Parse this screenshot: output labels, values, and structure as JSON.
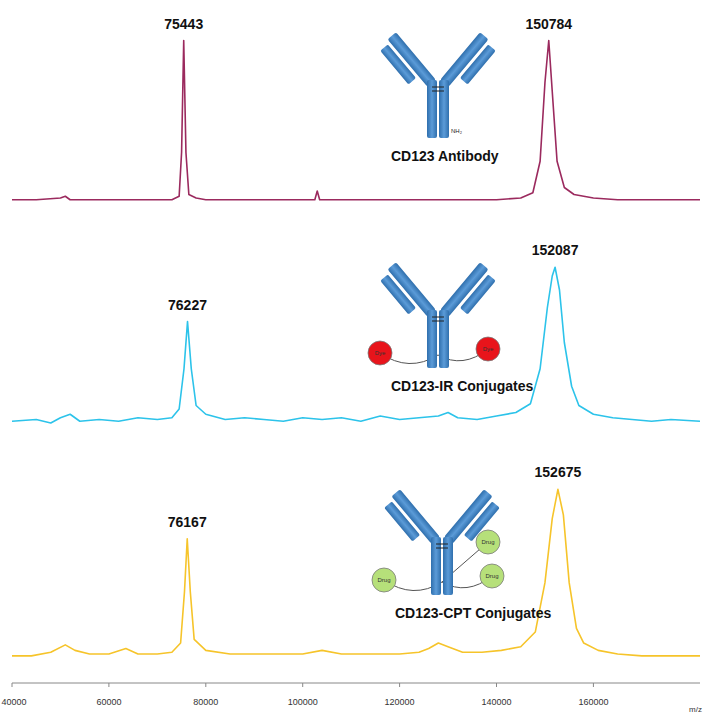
{
  "chart_data": [
    {
      "type": "line",
      "tick_labels": false,
      "xlim": [
        40000,
        182000
      ],
      "ylim": [
        0,
        100
      ],
      "series": [
        {
          "name": "CD123 Antibody",
          "color": "#9b2a5e",
          "x": [
            40000,
            45000,
            50000,
            51000,
            52000,
            56000,
            60000,
            65000,
            70000,
            73000,
            74500,
            75000,
            75443,
            75900,
            76500,
            78000,
            80000,
            85000,
            90000,
            95000,
            100000,
            102500,
            103000,
            103500,
            110000,
            120000,
            130000,
            140000,
            145000,
            147500,
            149000,
            150000,
            150784,
            151500,
            152500,
            154000,
            156000,
            160000,
            165000,
            170000,
            175000,
            182000
          ],
          "values": [
            3,
            3,
            4,
            5,
            3,
            3,
            3,
            3,
            3,
            3,
            5,
            30,
            94,
            30,
            6,
            4,
            3,
            3,
            3,
            3,
            3,
            3,
            8,
            3,
            3,
            3,
            3,
            3,
            4,
            7,
            25,
            70,
            94,
            65,
            25,
            10,
            6,
            4,
            3,
            3,
            3,
            3
          ]
        }
      ],
      "peak_labels": [
        75443,
        150784
      ],
      "icon_labels": [
        "NH₂"
      ]
    },
    {
      "type": "line",
      "tick_labels": false,
      "xlim": [
        40000,
        182000
      ],
      "ylim": [
        0,
        100
      ],
      "series": [
        {
          "name": "CD123-IR Conjugates",
          "color": "#2cc3ea",
          "x": [
            40000,
            45000,
            48000,
            50000,
            52000,
            54000,
            58000,
            62000,
            66000,
            70000,
            73000,
            74500,
            75500,
            76227,
            77000,
            78000,
            80000,
            84000,
            88000,
            92000,
            96000,
            100000,
            104000,
            108000,
            112000,
            116000,
            120000,
            124000,
            128000,
            130000,
            132000,
            136000,
            140000,
            144000,
            147000,
            149000,
            150500,
            151500,
            152087,
            153000,
            154000,
            155500,
            157000,
            160000,
            164000,
            168000,
            172000,
            176000,
            182000
          ],
          "values": [
            5,
            6,
            4,
            7,
            9,
            5,
            6,
            5,
            7,
            6,
            7,
            12,
            35,
            62,
            35,
            14,
            9,
            6,
            7,
            6,
            5,
            7,
            6,
            7,
            5,
            8,
            6,
            7,
            8,
            10,
            7,
            6,
            8,
            10,
            15,
            35,
            70,
            88,
            93,
            80,
            50,
            25,
            14,
            9,
            7,
            6,
            5,
            6,
            5
          ]
        }
      ],
      "peak_labels": [
        76227,
        152087
      ],
      "icon_labels": [
        "Dye",
        "Dye"
      ]
    },
    {
      "type": "line",
      "tick_labels": "x",
      "xlim": [
        40000,
        182000
      ],
      "ylim": [
        0,
        100
      ],
      "xticks": [
        40000,
        60000,
        80000,
        100000,
        120000,
        140000,
        160000
      ],
      "xlabel": "m/z",
      "series": [
        {
          "name": "CD123-CPT Conjugates",
          "color": "#f6c42a",
          "x": [
            40000,
            44000,
            48000,
            51000,
            53000,
            56000,
            60000,
            63500,
            66000,
            70000,
            73000,
            74800,
            75600,
            76167,
            76800,
            77600,
            80000,
            85000,
            90000,
            95000,
            100000,
            104000,
            108000,
            112000,
            116000,
            120000,
            124000,
            126000,
            128000,
            130000,
            133000,
            137000,
            141000,
            145000,
            148000,
            150000,
            151500,
            152675,
            153800,
            155000,
            156500,
            158000,
            161000,
            165000,
            170000,
            175000,
            182000
          ],
          "values": [
            5,
            5,
            7,
            11,
            8,
            6,
            6,
            9,
            6,
            6,
            7,
            12,
            40,
            69,
            40,
            14,
            8,
            6,
            6,
            6,
            6,
            8,
            6,
            6,
            6,
            6,
            7,
            9,
            12,
            10,
            7,
            7,
            8,
            10,
            18,
            45,
            80,
            96,
            82,
            45,
            20,
            12,
            8,
            6,
            5,
            5,
            5
          ]
        }
      ],
      "peak_labels": [
        76167,
        152675
      ],
      "icon_labels": [
        "Drug",
        "Drug",
        "Drug"
      ]
    }
  ]
}
